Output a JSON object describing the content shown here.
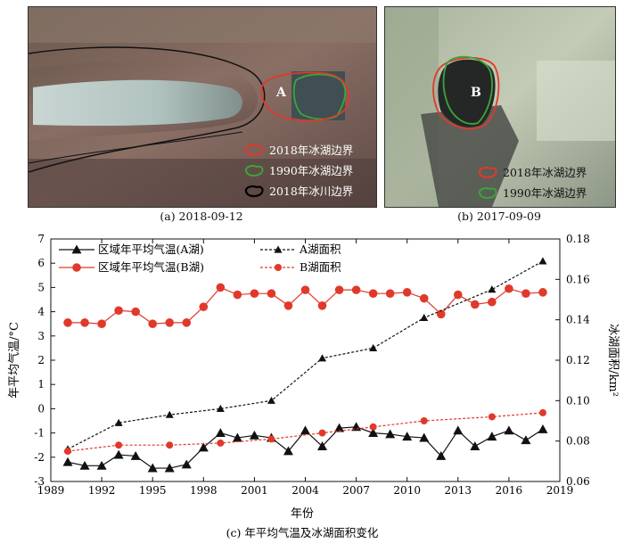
{
  "panel_a": {
    "caption": "(a) 2018-09-12",
    "lake_label": "A",
    "legend": [
      "2018年冰湖边界",
      "1990年冰湖边界",
      "2018年冰川边界"
    ]
  },
  "panel_b": {
    "caption": "(b) 2017-09-09",
    "lake_label": "B",
    "legend": [
      "2018年冰湖边界",
      "1990年冰湖边界"
    ]
  },
  "colors": {
    "red": "#e0392b",
    "green": "#3aa53a",
    "black": "#111111"
  },
  "chart_data": {
    "type": "line",
    "caption": "(c) 年平均气温及冰湖面积变化",
    "xlabel": "年份",
    "ylabel_left": "年平均气温/°C",
    "ylabel_right": "冰湖面积/km²",
    "xlim": [
      1989,
      2019
    ],
    "xticks": [
      1989,
      1992,
      1995,
      1998,
      2001,
      2004,
      2007,
      2010,
      2013,
      2016,
      2019
    ],
    "ylim_left": [
      -3,
      7
    ],
    "yticks_left": [
      -3,
      -2,
      -1,
      0,
      1,
      2,
      3,
      4,
      5,
      6,
      7
    ],
    "ylim_right": [
      0.06,
      0.18
    ],
    "yticks_right": [
      "0.06",
      "0.08",
      "0.10",
      "0.12",
      "0.14",
      "0.16",
      "0.18"
    ],
    "legend_position": "top-left",
    "series": [
      {
        "name": "区域年平均气温(A湖)",
        "axis": "left",
        "style": "solid",
        "marker": "triangle",
        "color": "#111111",
        "x": [
          1990,
          1991,
          1992,
          1993,
          1994,
          1995,
          1996,
          1997,
          1998,
          1999,
          2000,
          2001,
          2002,
          2003,
          2004,
          2005,
          2006,
          2007,
          2008,
          2009,
          2010,
          2011,
          2012,
          2013,
          2014,
          2015,
          2016,
          2017,
          2018
        ],
        "values": [
          -2.2,
          -2.35,
          -2.35,
          -1.9,
          -1.95,
          -2.45,
          -2.45,
          -2.3,
          -1.6,
          -1.0,
          -1.2,
          -1.1,
          -1.2,
          -1.75,
          -0.9,
          -1.55,
          -0.8,
          -0.75,
          -1.0,
          -1.05,
          -1.15,
          -1.2,
          -1.95,
          -0.9,
          -1.55,
          -1.15,
          -0.9,
          -1.3,
          -0.85
        ]
      },
      {
        "name": "区域年平均气温(B湖)",
        "axis": "left",
        "style": "solid",
        "marker": "circle",
        "color": "#e0392b",
        "x": [
          1990,
          1991,
          1992,
          1993,
          1994,
          1995,
          1996,
          1997,
          1998,
          1999,
          2000,
          2001,
          2002,
          2003,
          2004,
          2005,
          2006,
          2007,
          2008,
          2009,
          2010,
          2011,
          2012,
          2013,
          2014,
          2015,
          2016,
          2017,
          2018
        ],
        "values": [
          3.55,
          3.55,
          3.5,
          4.05,
          4.0,
          3.5,
          3.55,
          3.55,
          4.2,
          5.0,
          4.7,
          4.75,
          4.75,
          4.25,
          4.9,
          4.25,
          4.9,
          4.9,
          4.75,
          4.75,
          4.8,
          4.55,
          3.9,
          4.7,
          4.3,
          4.4,
          4.95,
          4.75,
          4.8
        ]
      },
      {
        "name": "A湖面积",
        "axis": "right",
        "style": "dashed",
        "marker": "triangle",
        "color": "#111111",
        "x": [
          1990,
          1993,
          1996,
          1999,
          2002,
          2005,
          2008,
          2011,
          2015,
          2018
        ],
        "values": [
          0.076,
          0.089,
          0.093,
          0.096,
          0.1,
          0.121,
          0.126,
          0.141,
          0.155,
          0.169
        ]
      },
      {
        "name": "B湖面积",
        "axis": "right",
        "style": "dashed",
        "marker": "circle",
        "color": "#e0392b",
        "x": [
          1990,
          1993,
          1996,
          1999,
          2002,
          2005,
          2008,
          2011,
          2015,
          2018
        ],
        "values": [
          0.075,
          0.078,
          0.078,
          0.079,
          0.081,
          0.084,
          0.087,
          0.09,
          0.092,
          0.094
        ]
      }
    ]
  }
}
